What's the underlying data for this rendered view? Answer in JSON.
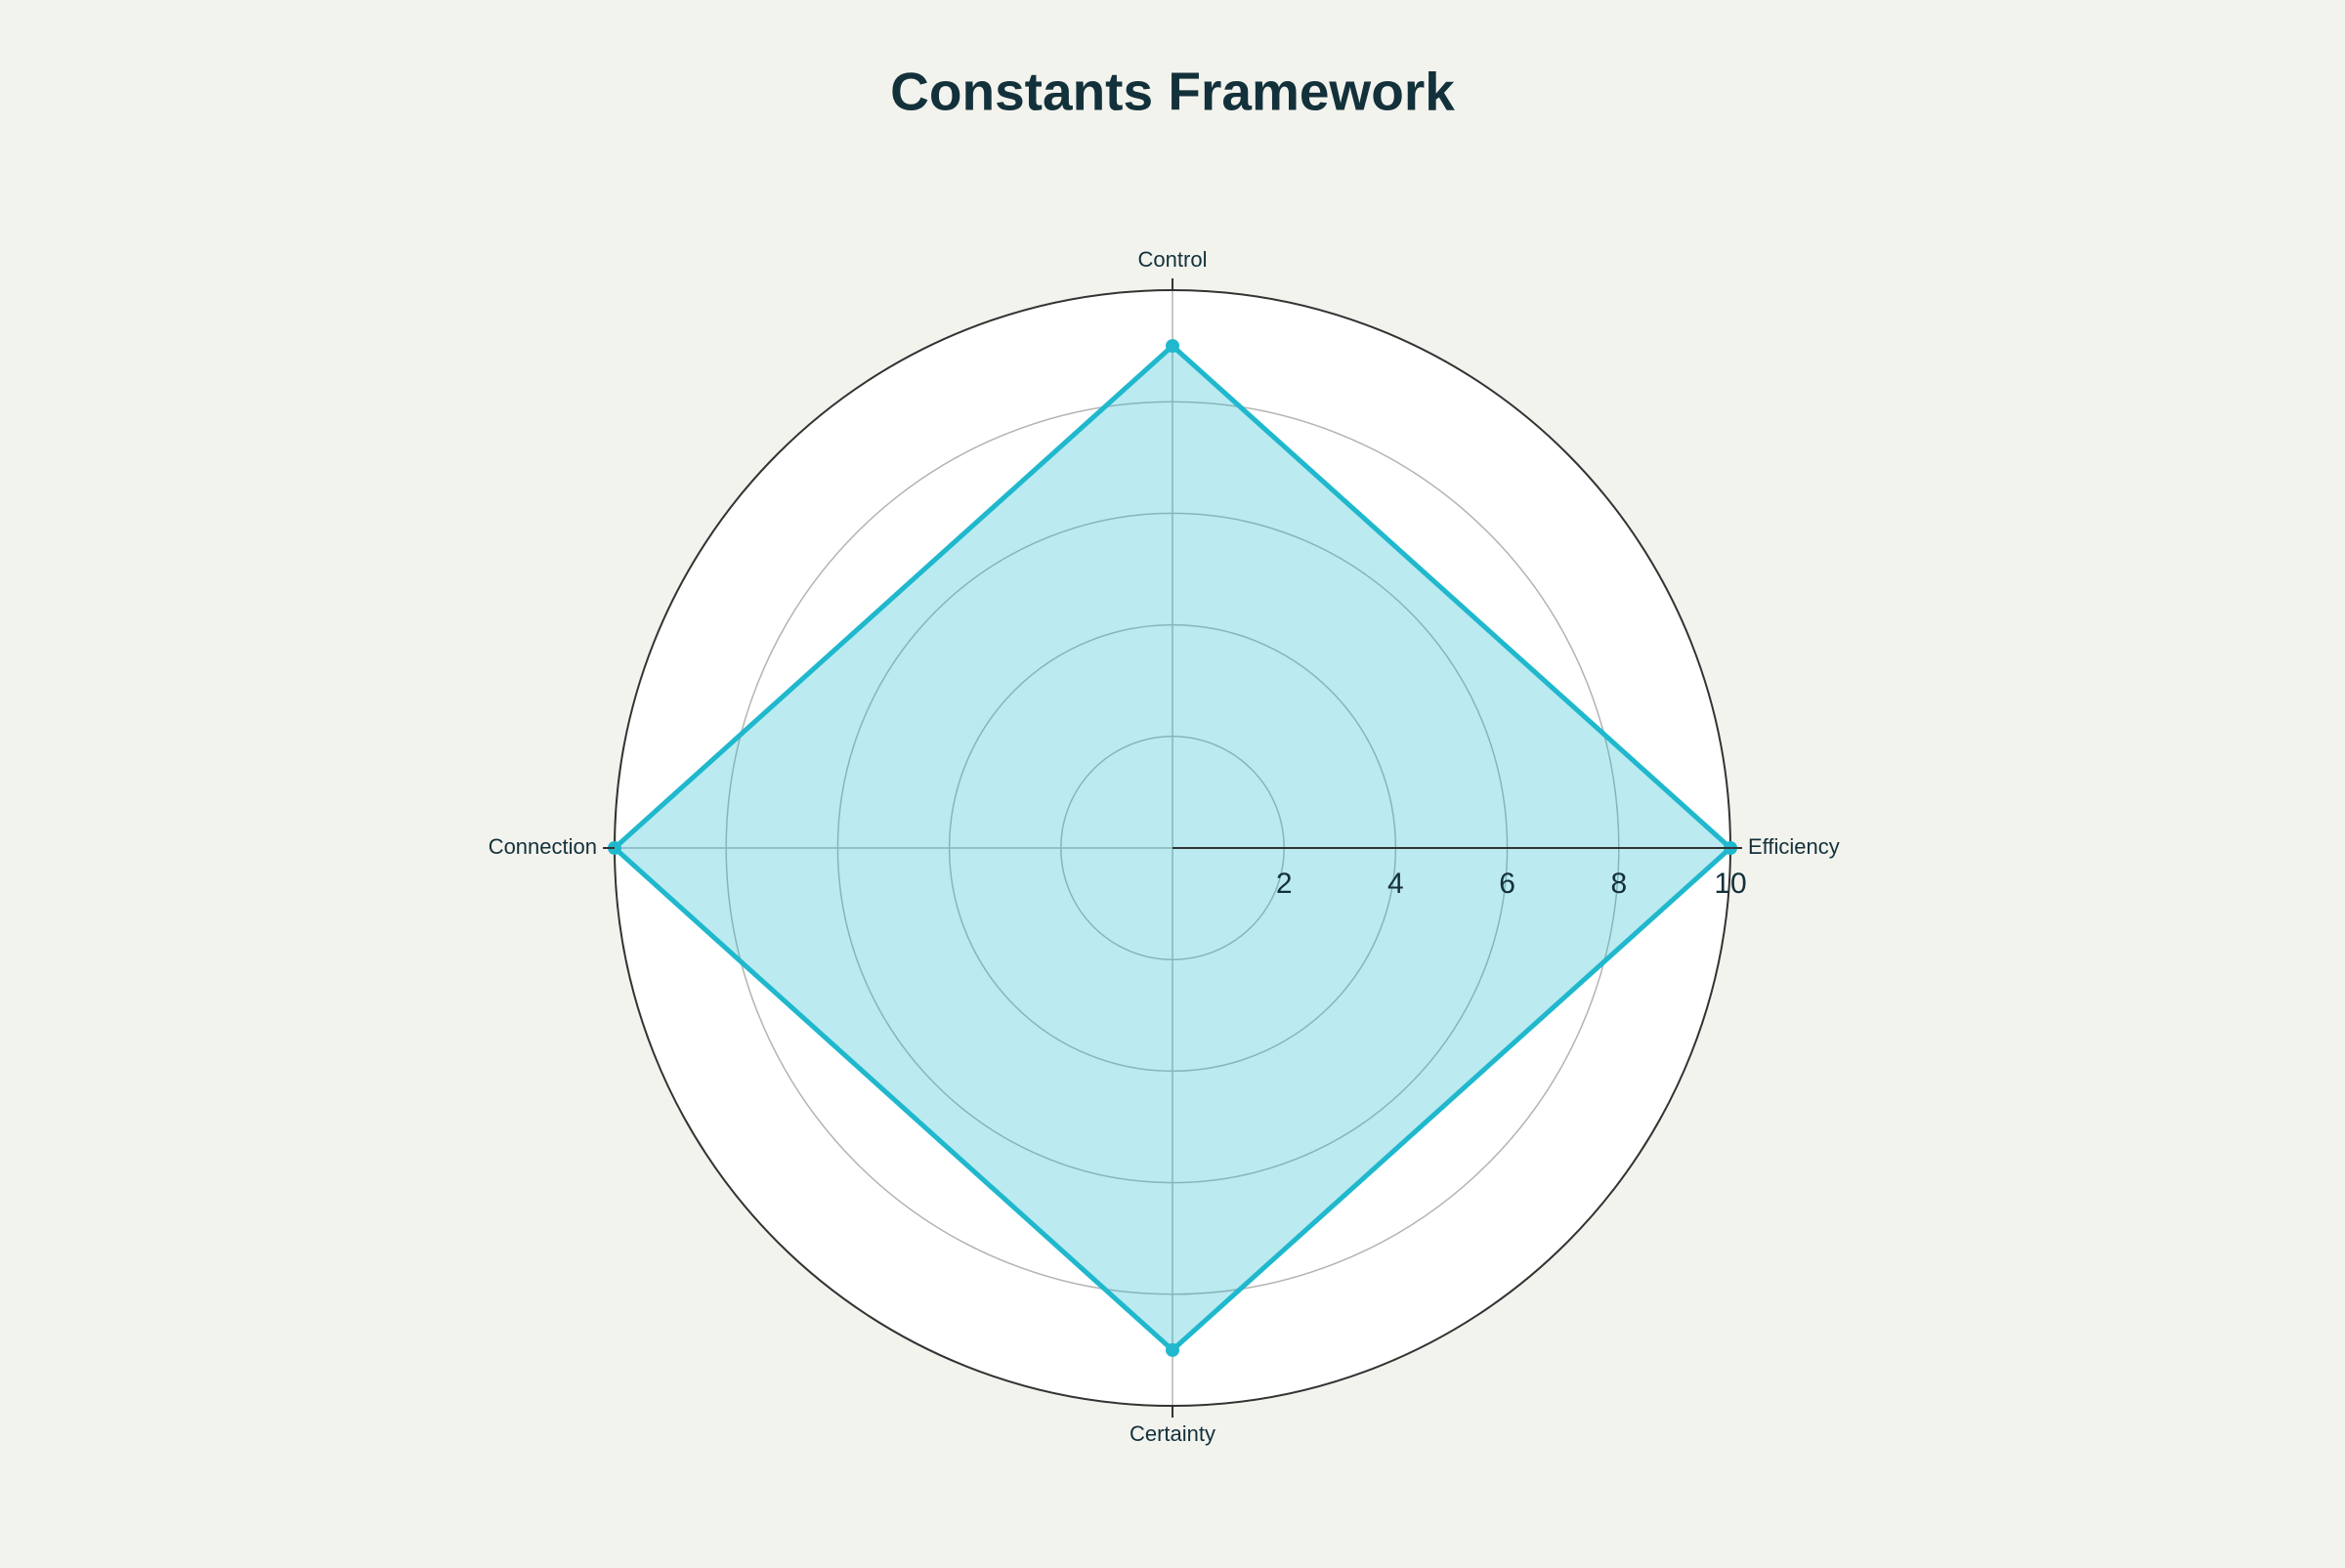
{
  "chart_data": {
    "type": "radar",
    "title": "Constants Framework",
    "categories": [
      "Efficiency",
      "Control",
      "Connection",
      "Certainty"
    ],
    "values": [
      10,
      9,
      10,
      9
    ],
    "color": "#1fb8cd",
    "rlim": [
      0,
      10
    ],
    "rticks": [
      2,
      4,
      6,
      8,
      10
    ],
    "grid": true
  }
}
